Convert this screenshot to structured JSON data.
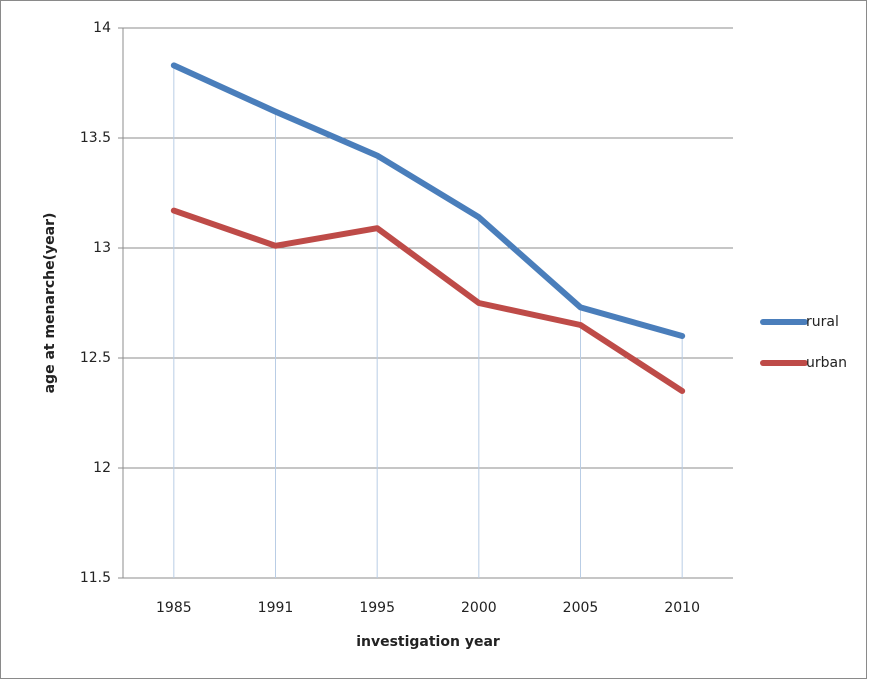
{
  "chart_data": {
    "type": "line",
    "xlabel": "investigation year",
    "ylabel": "age at menarche(year)",
    "categories": [
      "1985",
      "1991",
      "1995",
      "2000",
      "2005",
      "2010"
    ],
    "series": [
      {
        "name": "rural",
        "color": "#4a7ebb",
        "values": [
          13.83,
          13.62,
          13.42,
          13.14,
          12.73,
          12.6
        ]
      },
      {
        "name": "urban",
        "color": "#be4b48",
        "values": [
          13.17,
          13.01,
          13.09,
          12.75,
          12.65,
          12.35
        ]
      }
    ],
    "ylim": [
      11.5,
      14
    ],
    "yticks": [
      11.5,
      12,
      12.5,
      13,
      13.5,
      14
    ],
    "grid": true,
    "legend": "right",
    "drop_lines": true
  }
}
